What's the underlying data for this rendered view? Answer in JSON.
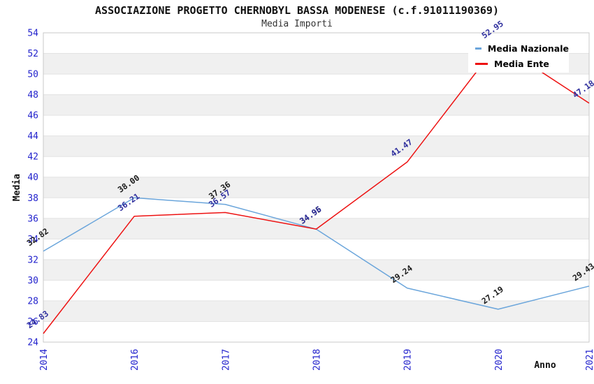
{
  "title": "ASSOCIAZIONE PROGETTO CHERNOBYL BASSA MODENESE (c.f.91011190369)",
  "subtitle": "Media Importi",
  "axes": {
    "y_label": "Media",
    "x_label": "Anno",
    "y_ticks": [
      "54",
      "52",
      "50",
      "48",
      "46",
      "44",
      "42",
      "40",
      "38",
      "36",
      "34",
      "32",
      "30",
      "28",
      "26",
      "24"
    ],
    "x_ticks": [
      "2014",
      "2016",
      "2017",
      "2018",
      "2019",
      "2020",
      "2021"
    ],
    "tick_color": "#2323cd",
    "axis_title_color": "#111111"
  },
  "legend": {
    "items": [
      {
        "label": "Media Nazionale",
        "color": "#6aa5db"
      },
      {
        "label": "Media Ente",
        "color": "#ed1212"
      }
    ]
  },
  "chart_data": {
    "type": "line",
    "title": "ASSOCIAZIONE PROGETTO CHERNOBYL BASSA MODENESE (c.f.91011190369)",
    "subtitle": "Media Importi",
    "xlabel": "Anno",
    "ylabel": "Media",
    "categories": [
      2014,
      2016,
      2017,
      2018,
      2019,
      2020,
      2021
    ],
    "series": [
      {
        "name": "Media Nazionale",
        "color": "#6aa5db",
        "label_color": "#1c1c1c",
        "values": [
          32.82,
          38.0,
          37.36,
          34.95,
          29.24,
          27.19,
          29.43
        ],
        "point_labels": [
          "32.82",
          "38.00",
          "37.36",
          "34.95",
          "29.24",
          "27.19",
          "29.43"
        ]
      },
      {
        "name": "Media Ente",
        "color": "#ed1212",
        "label_color": "#30309e",
        "values": [
          24.83,
          36.21,
          36.57,
          34.96,
          41.47,
          52.95,
          47.18
        ],
        "point_labels": [
          "24.83",
          "36.21",
          "36.57",
          "34.96",
          "41.47",
          "52.95",
          "47.18"
        ]
      }
    ],
    "ylim": [
      24,
      54
    ],
    "ytick_step": 2,
    "grid": "horizontal-bands-alternating",
    "band_colors": [
      "#ffffff",
      "#f0f0f0"
    ],
    "gridline_color": "#e3e3e3",
    "border_color": "#c9c9c9",
    "legend_position": "top-right"
  }
}
